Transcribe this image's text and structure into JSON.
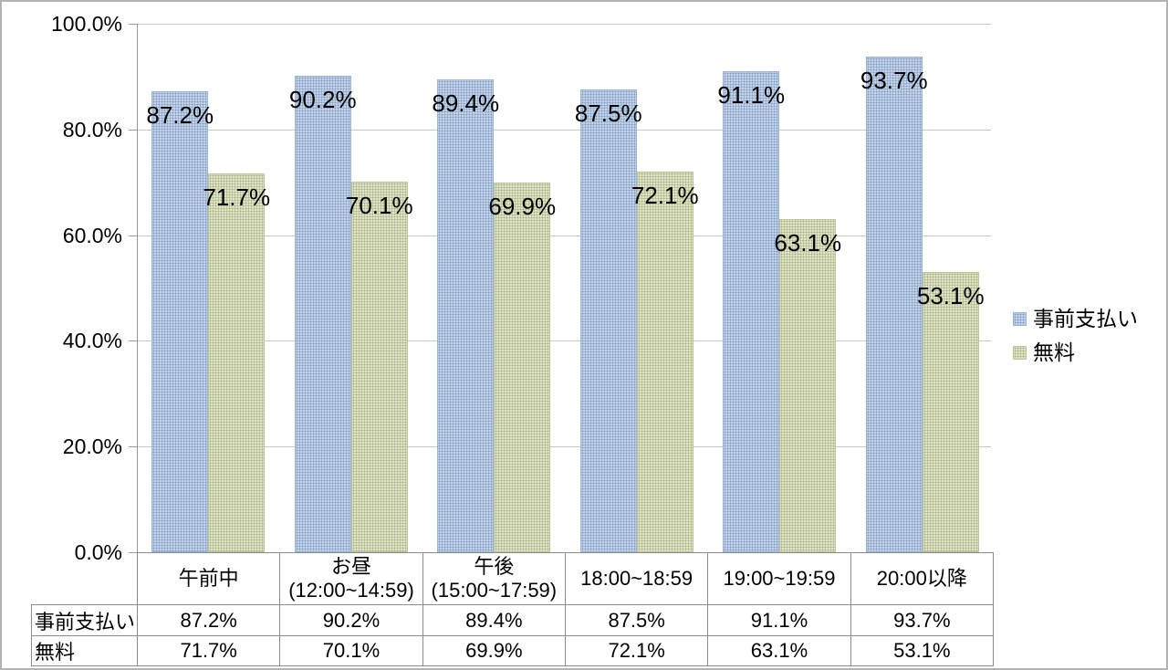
{
  "figure": {
    "background": "#ffffff",
    "border_color": "#b3b3b3",
    "gridline_color": "#c6c6c6",
    "axis_color": "#9a9a9a",
    "table_border_color": "#8c8c8c"
  },
  "chart_data": {
    "type": "bar",
    "title": "",
    "xlabel": "",
    "ylabel": "",
    "ylim": [
      0,
      100
    ],
    "ytick_step": 20,
    "ytick_labels": [
      "0.0%",
      "20.0%",
      "40.0%",
      "60.0%",
      "80.0%",
      "100.0%"
    ],
    "grid": true,
    "legend_position": "right",
    "show_data_table": true,
    "data_label_format": "percent-1-decimal",
    "categories": [
      [
        "午前中"
      ],
      [
        "お昼",
        "(12:00~14:59)"
      ],
      [
        "午後",
        "(15:00~17:59)"
      ],
      [
        "18:00~18:59"
      ],
      [
        "19:00~19:59"
      ],
      [
        "20:00以降"
      ]
    ],
    "series": [
      {
        "name": "事前支払い",
        "values": [
          87.2,
          90.2,
          89.4,
          87.5,
          91.1,
          93.7
        ],
        "labels": [
          "87.2%",
          "90.2%",
          "89.4%",
          "87.5%",
          "91.1%",
          "93.7%"
        ],
        "fill": "#c6d4e8",
        "pattern_dot": "#7e9dc5",
        "edge": "#9ab2d3",
        "pattern": "dotted"
      },
      {
        "name": "無料",
        "values": [
          71.7,
          70.1,
          69.9,
          72.1,
          63.1,
          53.1
        ],
        "labels": [
          "71.7%",
          "70.1%",
          "69.9%",
          "72.1%",
          "63.1%",
          "53.1%"
        ],
        "fill": "#e1e5ca",
        "pattern_dot": "#a9b07e",
        "edge": "#bdc49a",
        "pattern": "dotted"
      }
    ]
  }
}
